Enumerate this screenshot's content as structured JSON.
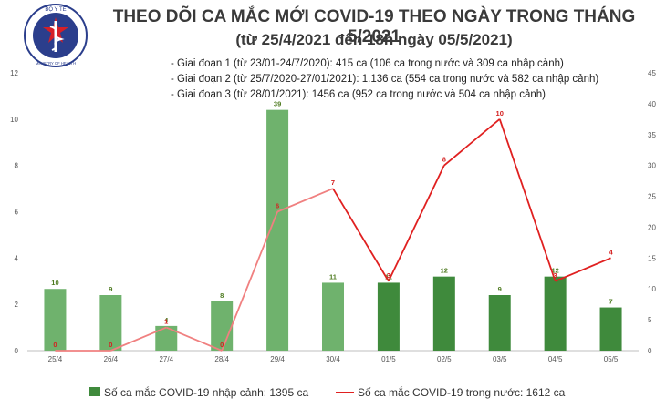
{
  "logo": {
    "top_text": "BỘ Y TẾ",
    "bottom_text": "MINISTRY OF HEALTH"
  },
  "title_line1": "THEO DÕI CA MẮC MỚI COVID-19 THEO NGÀY TRONG THÁNG 5/2021",
  "title_line2": "(từ 25/4/2021 đến 18h ngày 05/5/2021)",
  "phases": [
    "- Giai đoạn 1 (từ 23/01-24/7/2020): 415 ca (106 ca trong nước và 309 ca nhập cảnh)",
    "- Giai đoạn 2 (từ 25/7/2020-27/01/2021): 1.136 ca (554 ca trong nước và 582 ca nhập cảnh)",
    "- Giai đoạn 3 (từ 28/01/2021): 1456 ca (952 ca trong nước và 504 ca nhập cảnh)"
  ],
  "chart_data": {
    "type": "bar",
    "categories": [
      "25/4",
      "26/4",
      "27/4",
      "28/4",
      "29/4",
      "30/4",
      "01/5",
      "02/5",
      "03/5",
      "04/5",
      "05/5"
    ],
    "y_left_ticks": [
      "0",
      "2",
      "4",
      "6",
      "8",
      "10",
      "12"
    ],
    "y_left_lim": [
      0,
      12
    ],
    "y_right_ticks": [
      "0",
      "5",
      "10",
      "15",
      "20",
      "25",
      "30",
      "35",
      "40",
      "45"
    ],
    "y_right_lim": [
      0,
      45
    ],
    "series": [
      {
        "name": "Số ca mắc COVID-19 nhập cảnh: 1395 ca",
        "type": "bar",
        "axis": "right",
        "values": [
          10,
          9,
          4,
          8,
          39,
          11,
          11,
          12,
          9,
          12,
          7
        ],
        "colors": [
          "#6fb26d",
          "#6fb26d",
          "#6fb26d",
          "#6fb26d",
          "#6fb26d",
          "#6fb26d",
          "#3f8a3c",
          "#3f8a3c",
          "#3f8a3c",
          "#3f8a3c",
          "#3f8a3c"
        ]
      },
      {
        "name": "Số ca mắc COVID-19 trong nước: 1612 ca",
        "type": "line",
        "axis": "left",
        "values": [
          0,
          0,
          1,
          0,
          6,
          7,
          3,
          8,
          10,
          3,
          4
        ],
        "colors": [
          "#f08080",
          "#f08080",
          "#f08080",
          "#f08080",
          "#f08080",
          "#f08080",
          "#e02020",
          "#e02020",
          "#e02020",
          "#e02020",
          "#e02020"
        ]
      }
    ],
    "grid": false,
    "legend": "bottom"
  }
}
